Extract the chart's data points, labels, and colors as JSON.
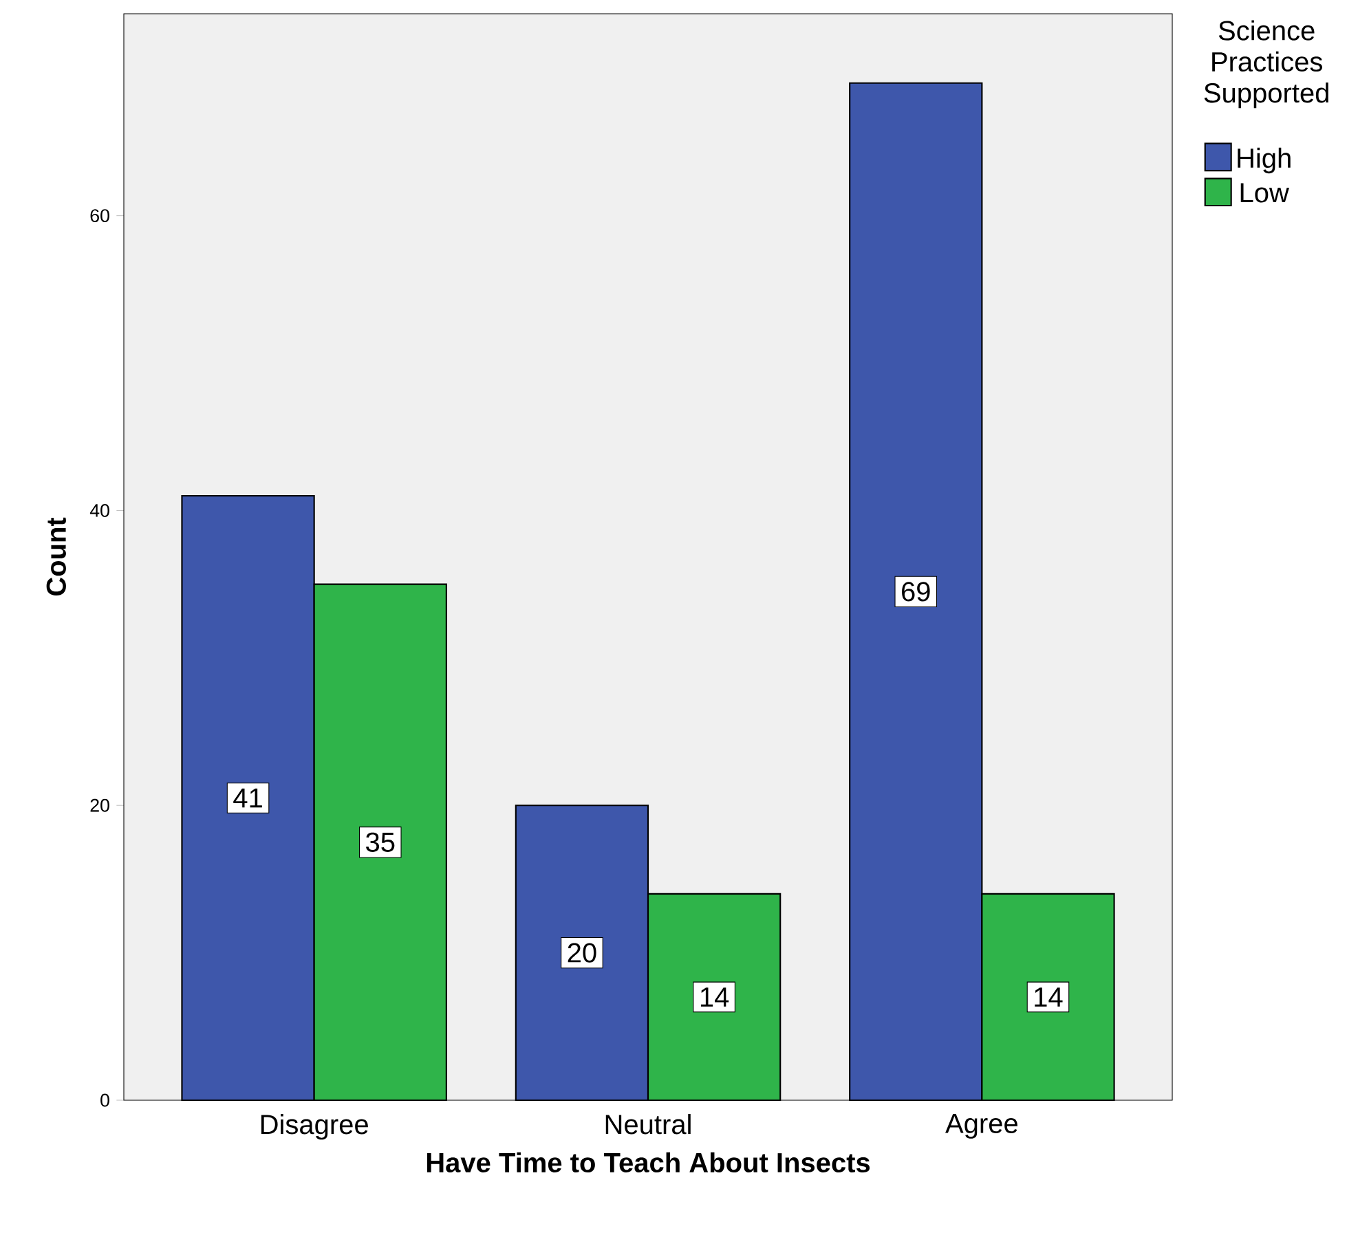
{
  "chart_data": {
    "type": "bar",
    "xlabel": "Have Time to Teach About Insects",
    "ylabel": "Count",
    "categories": [
      "Disagree",
      "Neutral",
      "Agree"
    ],
    "series": [
      {
        "name": "High",
        "color": "#3e57ab",
        "values": [
          41,
          20,
          69
        ]
      },
      {
        "name": "Low",
        "color": "#2fb44a",
        "values": [
          35,
          14,
          14
        ]
      }
    ],
    "legend_title": "Science Practices Supported",
    "legend": "top right",
    "ylim": [
      0,
      73.7
    ],
    "yticks": [
      0,
      20,
      40,
      60
    ],
    "data_labels": true,
    "grid": false
  }
}
